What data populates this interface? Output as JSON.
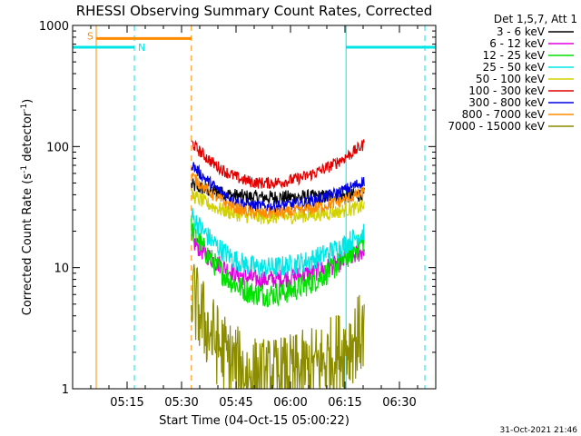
{
  "chart_data": {
    "type": "line",
    "title": "RHESSI Observing Summary Count Rates, Corrected",
    "xlabel": "Start Time (04-Oct-15 05:00:22)",
    "ylabel_main": "Corrected Count Rate (s",
    "ylabel_sup1": "-1",
    "ylabel_mid": " detector",
    "ylabel_sup2": "-1",
    "ylabel_end": ")",
    "y_scale": "log",
    "ylim": [
      1,
      1000
    ],
    "xlim_minutes": [
      0,
      100
    ],
    "x_ticks": [
      {
        "label": "05:15",
        "minutes": 15
      },
      {
        "label": "05:30",
        "minutes": 30
      },
      {
        "label": "05:45",
        "minutes": 45
      },
      {
        "label": "06:00",
        "minutes": 60
      },
      {
        "label": "06:15",
        "minutes": 75
      },
      {
        "label": "06:30",
        "minutes": 90
      }
    ],
    "y_ticks": [
      {
        "label": "1",
        "value": 1
      },
      {
        "label": "10",
        "value": 10
      },
      {
        "label": "100",
        "value": 100
      },
      {
        "label": "1000",
        "value": 1000
      }
    ],
    "legend_title": "Det 1,5,7, Att 1",
    "legend_placement": "right",
    "data_start_minutes": 32.7,
    "data_end_minutes": 80.3,
    "series": [
      {
        "name": "3 - 6 keV",
        "color": "#000000",
        "start": 48,
        "min": 38,
        "end": 40,
        "noise": 0.06
      },
      {
        "name": "6 - 12 keV",
        "color": "#e100e1",
        "start": 17,
        "min": 8,
        "end": 14,
        "noise": 0.08
      },
      {
        "name": "12 - 25 keV",
        "color": "#00e100",
        "start": 21,
        "min": 6,
        "end": 17,
        "noise": 0.1
      },
      {
        "name": "25 - 50 keV",
        "color": "#00e6e6",
        "start": 27,
        "min": 10,
        "end": 20,
        "noise": 0.09
      },
      {
        "name": "50 - 100 keV",
        "color": "#d2d200",
        "start": 40,
        "min": 26,
        "end": 32,
        "noise": 0.06
      },
      {
        "name": "100 - 300 keV",
        "color": "#e10000",
        "start": 108,
        "min": 50,
        "end": 105,
        "noise": 0.05
      },
      {
        "name": "300 - 800 keV",
        "color": "#0000e1",
        "start": 72,
        "min": 32,
        "end": 52,
        "noise": 0.05
      },
      {
        "name": "800 - 7000 keV",
        "color": "#ff8c00",
        "start": 58,
        "min": 28,
        "end": 42,
        "noise": 0.05
      },
      {
        "name": "7000 - 15000 keV",
        "color": "#8c8c00",
        "start": 6,
        "min": 1.2,
        "end": 3,
        "noise": 0.35
      }
    ],
    "annotations": {
      "saa_label": "S",
      "saa_color": "#ff8c00",
      "saa_start_minutes": 6.5,
      "saa_end_minutes": 32.7,
      "saa_level": 780,
      "night_label": "N",
      "night_color": "#00e6e6",
      "night_segments": [
        [
          0,
          17
        ],
        [
          75.3,
          100
        ]
      ],
      "night_level": 660,
      "night_lines_solid_minutes": [
        0,
        75.3
      ],
      "night_lines_dashed_minutes": [
        17,
        97
      ],
      "saa_line_solid_minutes": 6.5,
      "saa_line_dashed_minutes": 32.7
    },
    "timestamp": "31-Oct-2021 21:46"
  }
}
